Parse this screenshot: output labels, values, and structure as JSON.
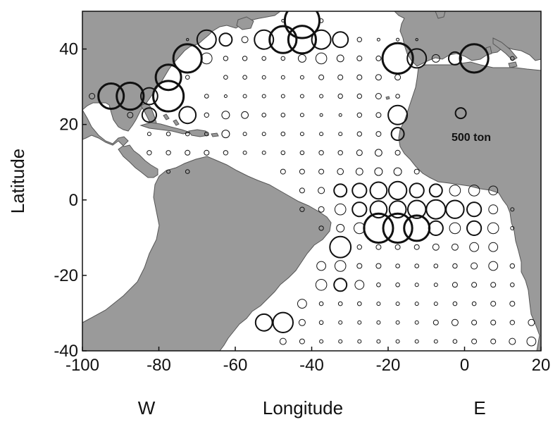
{
  "chart_data": {
    "type": "scatter",
    "subtype": "bubble-map",
    "title": "",
    "xlabel": "Longitude",
    "ylabel": "Latitude",
    "xlim": [
      -100,
      20
    ],
    "ylim": [
      -40,
      50
    ],
    "x_ticks": [
      -100,
      -80,
      -60,
      -40,
      -20,
      0,
      20
    ],
    "x_tick_labels": [
      "-100",
      "-80",
      "-60",
      "-40",
      "-20",
      "0",
      "20"
    ],
    "y_ticks": [
      -40,
      -20,
      0,
      20,
      40
    ],
    "y_tick_labels": [
      "-40",
      "-20",
      "0",
      "20",
      "40"
    ],
    "hemisphere_labels": {
      "west": "W",
      "east": "E"
    },
    "legend": {
      "label": "500 ton",
      "value": 500,
      "lon": -1,
      "lat": 23
    },
    "land_color": "#9a9a9a",
    "series": [
      {
        "unit": "ton",
        "points": [
          [
            -42.5,
            47.5,
            3000
          ],
          [
            -37.5,
            47.5,
            40
          ],
          [
            -47.5,
            47.5,
            20
          ],
          [
            -52.5,
            42.5,
            900
          ],
          [
            -47.5,
            42.5,
            1800
          ],
          [
            -42.5,
            42.5,
            1900
          ],
          [
            -37.5,
            42.5,
            900
          ],
          [
            -32.5,
            42.5,
            600
          ],
          [
            -57.5,
            42.5,
            100
          ],
          [
            -62.5,
            42.5,
            400
          ],
          [
            -67.5,
            42.5,
            900
          ],
          [
            -72.5,
            42.5,
            15
          ],
          [
            -27.5,
            42.5,
            50
          ],
          [
            -22.5,
            42.5,
            20
          ],
          [
            -17.5,
            42.5,
            20
          ],
          [
            -12.5,
            42.5,
            15
          ],
          [
            -72.5,
            37.5,
            2000
          ],
          [
            -67.5,
            37.5,
            300
          ],
          [
            -62.5,
            37.5,
            50
          ],
          [
            -57.5,
            37.5,
            50
          ],
          [
            -52.5,
            37.5,
            40
          ],
          [
            -47.5,
            37.5,
            40
          ],
          [
            -42.5,
            37.5,
            150
          ],
          [
            -37.5,
            37.5,
            300
          ],
          [
            -32.5,
            37.5,
            120
          ],
          [
            -27.5,
            37.5,
            60
          ],
          [
            -22.5,
            37.5,
            60
          ],
          [
            -17.5,
            37.5,
            2300
          ],
          [
            -12.5,
            37.5,
            900
          ],
          [
            -7.5,
            37.5,
            150
          ],
          [
            -2.5,
            37.5,
            400
          ],
          [
            2.5,
            37.5,
            2000
          ],
          [
            12.5,
            37.5,
            40
          ],
          [
            -77.5,
            32.5,
            1600
          ],
          [
            -72.5,
            32.5,
            40
          ],
          [
            -62.5,
            32.5,
            40
          ],
          [
            -57.5,
            32.5,
            40
          ],
          [
            -52.5,
            32.5,
            30
          ],
          [
            -47.5,
            32.5,
            30
          ],
          [
            -42.5,
            32.5,
            30
          ],
          [
            -37.5,
            32.5,
            60
          ],
          [
            -32.5,
            32.5,
            60
          ],
          [
            -27.5,
            32.5,
            60
          ],
          [
            -22.5,
            32.5,
            80
          ],
          [
            -17.5,
            32.5,
            80
          ],
          [
            -97.5,
            27.5,
            80
          ],
          [
            -92.5,
            27.5,
            1600
          ],
          [
            -87.5,
            27.5,
            1800
          ],
          [
            -82.5,
            27.5,
            700
          ],
          [
            -77.5,
            27.5,
            2300
          ],
          [
            -67.5,
            27.5,
            40
          ],
          [
            -62.5,
            27.5,
            20
          ],
          [
            -57.5,
            27.5,
            30
          ],
          [
            -52.5,
            27.5,
            30
          ],
          [
            -47.5,
            27.5,
            30
          ],
          [
            -42.5,
            27.5,
            30
          ],
          [
            -37.5,
            27.5,
            30
          ],
          [
            -32.5,
            27.5,
            50
          ],
          [
            -27.5,
            27.5,
            50
          ],
          [
            -22.5,
            27.5,
            80
          ],
          [
            -17.5,
            27.5,
            40
          ],
          [
            -87.5,
            22.5,
            80
          ],
          [
            -82.5,
            22.5,
            500
          ],
          [
            -72.5,
            22.5,
            700
          ],
          [
            -67.5,
            22.5,
            50
          ],
          [
            -62.5,
            22.5,
            150
          ],
          [
            -57.5,
            22.5,
            120
          ],
          [
            -52.5,
            22.5,
            40
          ],
          [
            -47.5,
            22.5,
            40
          ],
          [
            -42.5,
            22.5,
            30
          ],
          [
            -37.5,
            22.5,
            20
          ],
          [
            -32.5,
            22.5,
            20
          ],
          [
            -27.5,
            22.5,
            50
          ],
          [
            -22.5,
            22.5,
            60
          ],
          [
            -17.5,
            22.5,
            900
          ],
          [
            -82.5,
            17.5,
            30
          ],
          [
            -77.5,
            17.5,
            40
          ],
          [
            -72.5,
            17.5,
            40
          ],
          [
            -67.5,
            17.5,
            40
          ],
          [
            -62.5,
            17.5,
            150
          ],
          [
            -57.5,
            17.5,
            30
          ],
          [
            -52.5,
            17.5,
            30
          ],
          [
            -47.5,
            17.5,
            40
          ],
          [
            -42.5,
            17.5,
            30
          ],
          [
            -37.5,
            17.5,
            30
          ],
          [
            -32.5,
            17.5,
            30
          ],
          [
            -27.5,
            17.5,
            50
          ],
          [
            -22.5,
            17.5,
            60
          ],
          [
            -17.5,
            17.5,
            400
          ],
          [
            -82.5,
            12.5,
            50
          ],
          [
            -77.5,
            12.5,
            50
          ],
          [
            -72.5,
            12.5,
            60
          ],
          [
            -67.5,
            12.5,
            60
          ],
          [
            -62.5,
            12.5,
            50
          ],
          [
            -57.5,
            12.5,
            30
          ],
          [
            -52.5,
            12.5,
            30
          ],
          [
            -47.5,
            12.5,
            40
          ],
          [
            -42.5,
            12.5,
            40
          ],
          [
            -37.5,
            12.5,
            50
          ],
          [
            -32.5,
            12.5,
            50
          ],
          [
            -27.5,
            12.5,
            80
          ],
          [
            -22.5,
            12.5,
            120
          ],
          [
            -17.5,
            12.5,
            60
          ],
          [
            -77.5,
            7.5,
            30
          ],
          [
            -72.5,
            7.5,
            40
          ],
          [
            -47.5,
            7.5,
            60
          ],
          [
            -42.5,
            7.5,
            60
          ],
          [
            -37.5,
            7.5,
            60
          ],
          [
            -32.5,
            7.5,
            90
          ],
          [
            -27.5,
            7.5,
            120
          ],
          [
            -22.5,
            7.5,
            150
          ],
          [
            -17.5,
            7.5,
            150
          ],
          [
            -12.5,
            7.5,
            60
          ],
          [
            -42.5,
            2.5,
            60
          ],
          [
            -37.5,
            2.5,
            100
          ],
          [
            -32.5,
            2.5,
            400
          ],
          [
            -27.5,
            2.5,
            500
          ],
          [
            -22.5,
            2.5,
            700
          ],
          [
            -17.5,
            2.5,
            800
          ],
          [
            -12.5,
            2.5,
            500
          ],
          [
            -7.5,
            2.5,
            400
          ],
          [
            -2.5,
            2.5,
            300
          ],
          [
            2.5,
            2.5,
            300
          ],
          [
            7.5,
            2.5,
            200
          ],
          [
            -42.5,
            -2.5,
            50
          ],
          [
            -37.5,
            -2.5,
            80
          ],
          [
            -32.5,
            -2.5,
            300
          ],
          [
            -27.5,
            -2.5,
            500
          ],
          [
            -22.5,
            -2.5,
            700
          ],
          [
            -17.5,
            -2.5,
            700
          ],
          [
            -12.5,
            -2.5,
            800
          ],
          [
            -7.5,
            -2.5,
            900
          ],
          [
            -2.5,
            -2.5,
            800
          ],
          [
            2.5,
            -2.5,
            500
          ],
          [
            7.5,
            -2.5,
            200
          ],
          [
            12.5,
            -2.5,
            30
          ],
          [
            -37.5,
            -7.5,
            50
          ],
          [
            -32.5,
            -7.5,
            150
          ],
          [
            -27.5,
            -7.5,
            300
          ],
          [
            -22.5,
            -7.5,
            2100
          ],
          [
            -17.5,
            -7.5,
            2100
          ],
          [
            -12.5,
            -7.5,
            1600
          ],
          [
            -7.5,
            -7.5,
            500
          ],
          [
            -2.5,
            -7.5,
            300
          ],
          [
            2.5,
            -7.5,
            500
          ],
          [
            7.5,
            -7.5,
            300
          ],
          [
            12.5,
            -7.5,
            30
          ],
          [
            -32.5,
            -12.5,
            1100
          ],
          [
            -27.5,
            -12.5,
            50
          ],
          [
            -22.5,
            -12.5,
            60
          ],
          [
            -17.5,
            -12.5,
            60
          ],
          [
            -12.5,
            -12.5,
            60
          ],
          [
            -7.5,
            -12.5,
            100
          ],
          [
            -2.5,
            -12.5,
            100
          ],
          [
            2.5,
            -12.5,
            200
          ],
          [
            7.5,
            -12.5,
            200
          ],
          [
            -37.5,
            -17.5,
            200
          ],
          [
            -32.5,
            -17.5,
            300
          ],
          [
            -27.5,
            -17.5,
            60
          ],
          [
            -22.5,
            -17.5,
            60
          ],
          [
            -17.5,
            -17.5,
            40
          ],
          [
            -12.5,
            -17.5,
            40
          ],
          [
            -7.5,
            -17.5,
            40
          ],
          [
            -2.5,
            -17.5,
            50
          ],
          [
            2.5,
            -17.5,
            100
          ],
          [
            7.5,
            -17.5,
            200
          ],
          [
            12.5,
            -17.5,
            50
          ],
          [
            -37.5,
            -22.5,
            300
          ],
          [
            -32.5,
            -22.5,
            400
          ],
          [
            -27.5,
            -22.5,
            200
          ],
          [
            -22.5,
            -22.5,
            40
          ],
          [
            -17.5,
            -22.5,
            40
          ],
          [
            -12.5,
            -22.5,
            30
          ],
          [
            -7.5,
            -22.5,
            30
          ],
          [
            -2.5,
            -22.5,
            60
          ],
          [
            2.5,
            -22.5,
            60
          ],
          [
            7.5,
            -22.5,
            60
          ],
          [
            12.5,
            -22.5,
            40
          ],
          [
            -42.5,
            -27.5,
            200
          ],
          [
            -37.5,
            -27.5,
            40
          ],
          [
            -32.5,
            -27.5,
            40
          ],
          [
            -27.5,
            -27.5,
            40
          ],
          [
            -22.5,
            -27.5,
            30
          ],
          [
            -17.5,
            -27.5,
            30
          ],
          [
            -12.5,
            -27.5,
            30
          ],
          [
            -7.5,
            -27.5,
            30
          ],
          [
            -2.5,
            -27.5,
            40
          ],
          [
            2.5,
            -27.5,
            40
          ],
          [
            7.5,
            -27.5,
            60
          ],
          [
            12.5,
            -27.5,
            60
          ],
          [
            -52.5,
            -32.5,
            700
          ],
          [
            -47.5,
            -32.5,
            1000
          ],
          [
            -42.5,
            -32.5,
            100
          ],
          [
            -37.5,
            -32.5,
            40
          ],
          [
            -32.5,
            -32.5,
            30
          ],
          [
            -27.5,
            -32.5,
            30
          ],
          [
            -22.5,
            -32.5,
            30
          ],
          [
            -17.5,
            -32.5,
            30
          ],
          [
            -12.5,
            -32.5,
            30
          ],
          [
            -7.5,
            -32.5,
            60
          ],
          [
            -2.5,
            -32.5,
            100
          ],
          [
            2.5,
            -32.5,
            60
          ],
          [
            7.5,
            -32.5,
            60
          ],
          [
            12.5,
            -32.5,
            50
          ],
          [
            17.5,
            -32.5,
            100
          ],
          [
            -47.5,
            -37.5,
            100
          ],
          [
            -42.5,
            -37.5,
            60
          ],
          [
            -37.5,
            -37.5,
            30
          ],
          [
            -32.5,
            -37.5,
            30
          ],
          [
            -27.5,
            -37.5,
            30
          ],
          [
            -22.5,
            -37.5,
            30
          ],
          [
            -17.5,
            -37.5,
            30
          ],
          [
            -12.5,
            -37.5,
            30
          ],
          [
            -7.5,
            -37.5,
            30
          ],
          [
            -2.5,
            -37.5,
            40
          ],
          [
            2.5,
            -37.5,
            60
          ],
          [
            7.5,
            -37.5,
            60
          ],
          [
            12.5,
            -37.5,
            100
          ],
          [
            17.5,
            -37.5,
            200
          ]
        ]
      }
    ]
  }
}
